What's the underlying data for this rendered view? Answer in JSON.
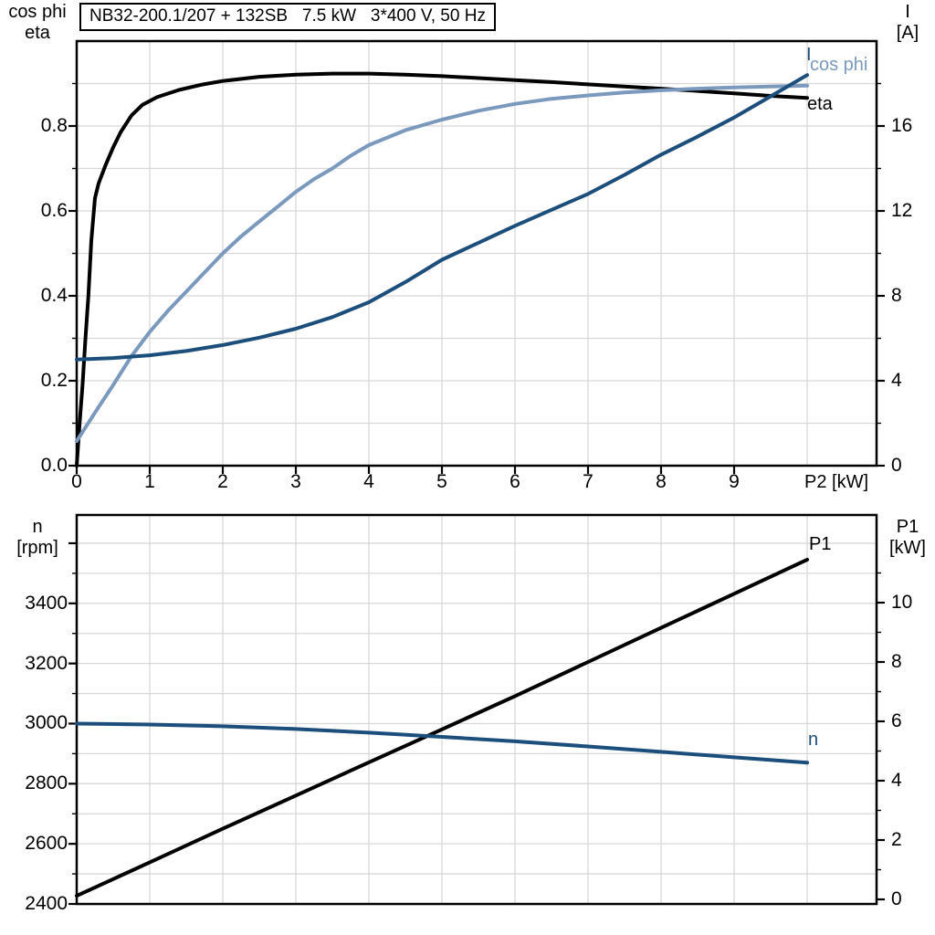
{
  "title": "NB32-200.1/207 + 132SB   7.5 kW   3*400 V, 50 Hz",
  "colors": {
    "black": "#000000",
    "light_blue": "#7a99bd",
    "dark_blue": "#1c4e7c",
    "grid": "#d8d8d8",
    "background": "#ffffff"
  },
  "chart_data": [
    {
      "type": "line",
      "title": "NB32-200.1/207 + 132SB   7.5 kW   3*400 V, 50 Hz",
      "grid": true,
      "legend_position": "right-inline",
      "x_axis": {
        "label": "P2 [kW]",
        "range": [
          0,
          10.95
        ],
        "tick_values": [
          0,
          1,
          2,
          3,
          4,
          5,
          6,
          7,
          8,
          9
        ],
        "tick_labels": [
          "0",
          "1",
          "2",
          "3",
          "4",
          "5",
          "6",
          "7",
          "8",
          "9"
        ]
      },
      "axes": {
        "left": {
          "title_lines": [
            "cos phi",
            "eta"
          ],
          "range": [
            0,
            1.0
          ],
          "major_ticks": [
            0,
            0.2,
            0.4,
            0.6,
            0.8
          ],
          "tick_labels": [
            "0.0",
            "0.2",
            "0.4",
            "0.6",
            "0.8"
          ],
          "minor_ticks": [
            0.1,
            0.3,
            0.5,
            0.7,
            0.9
          ]
        },
        "right": {
          "title_lines": [
            "I",
            "[A]"
          ],
          "range": [
            0,
            20
          ],
          "major_ticks": [
            0,
            4,
            8,
            12,
            16
          ],
          "tick_labels": [
            "0",
            "4",
            "8",
            "12",
            "16"
          ],
          "minor_ticks": [
            2,
            6,
            10,
            14,
            18
          ]
        }
      },
      "series": [
        {
          "name": "eta",
          "label": "eta",
          "axis": "left",
          "color": "#000000",
          "x": [
            0,
            0.04,
            0.08,
            0.12,
            0.16,
            0.2,
            0.25,
            0.3,
            0.4,
            0.5,
            0.6,
            0.75,
            0.9,
            1.1,
            1.4,
            1.7,
            2.0,
            2.5,
            3.0,
            3.5,
            4.0,
            4.5,
            5.0,
            5.5,
            6.0,
            6.5,
            7.0,
            7.5,
            8.0,
            8.5,
            9.0,
            9.5,
            10.0
          ],
          "y": [
            0,
            0.1,
            0.19,
            0.3,
            0.4,
            0.53,
            0.63,
            0.665,
            0.71,
            0.75,
            0.785,
            0.825,
            0.85,
            0.868,
            0.885,
            0.897,
            0.906,
            0.916,
            0.921,
            0.9235,
            0.9235,
            0.921,
            0.9175,
            0.913,
            0.908,
            0.9035,
            0.898,
            0.893,
            0.888,
            0.8825,
            0.877,
            0.871,
            0.866
          ]
        },
        {
          "name": "cos phi",
          "label": "cos phi",
          "axis": "left",
          "color": "#7a99bd",
          "x": [
            0,
            0.25,
            0.5,
            0.75,
            1.0,
            1.25,
            1.5,
            1.75,
            2.0,
            2.25,
            2.5,
            2.75,
            3.0,
            3.25,
            3.5,
            3.75,
            4.0,
            4.5,
            5.0,
            5.5,
            6.0,
            6.5,
            7.0,
            7.5,
            8.0,
            8.5,
            9.0,
            9.5,
            10.0
          ],
          "y": [
            0.058,
            0.125,
            0.19,
            0.258,
            0.315,
            0.365,
            0.41,
            0.455,
            0.5,
            0.54,
            0.575,
            0.61,
            0.645,
            0.675,
            0.7,
            0.73,
            0.755,
            0.79,
            0.815,
            0.836,
            0.852,
            0.864,
            0.872,
            0.879,
            0.884,
            0.888,
            0.891,
            0.893,
            0.895
          ]
        },
        {
          "name": "I",
          "label": "I",
          "axis": "right",
          "color": "#1c4e7c",
          "x": [
            0,
            0.5,
            1.0,
            1.5,
            2.0,
            2.5,
            3.0,
            3.5,
            4.0,
            4.5,
            5.0,
            5.5,
            6.0,
            6.5,
            7.0,
            7.5,
            8.0,
            8.5,
            9.0,
            9.5,
            10.0
          ],
          "y": [
            5.0,
            5.07,
            5.2,
            5.4,
            5.68,
            6.03,
            6.45,
            7.0,
            7.7,
            8.65,
            9.7,
            10.5,
            11.3,
            12.05,
            12.8,
            13.7,
            14.65,
            15.5,
            16.4,
            17.4,
            18.4
          ]
        }
      ]
    },
    {
      "type": "line",
      "title": "",
      "grid": true,
      "x_axis": {
        "label": "",
        "range": [
          0,
          10.95
        ],
        "tick_values": [],
        "tick_labels": []
      },
      "axes": {
        "left": {
          "title_lines": [
            "n",
            "[rpm]"
          ],
          "range": [
            2400,
            3690
          ],
          "major_ticks": [
            2400,
            2600,
            2800,
            3000,
            3200,
            3400,
            3600
          ],
          "tick_labels": [
            "2400",
            "2600",
            "2800",
            "3000",
            "3200",
            "3400",
            ""
          ],
          "minor_ticks": [
            2500,
            2700,
            2900,
            3100,
            3300,
            3500
          ]
        },
        "right": {
          "title_lines": [
            "P1",
            "[kW]"
          ],
          "range": [
            0,
            12.9
          ],
          "major_ticks": [
            0,
            2,
            4,
            6,
            8,
            10
          ],
          "tick_labels": [
            "0",
            "2",
            "4",
            "6",
            "8",
            "10"
          ],
          "minor_ticks": [
            1,
            3,
            5,
            7,
            9,
            11
          ]
        }
      },
      "series": [
        {
          "name": "P1",
          "label": "P1",
          "axis": "right",
          "color": "#000000",
          "x": [
            0,
            1,
            2,
            3,
            4,
            5,
            6,
            7,
            8,
            9,
            10
          ],
          "y": [
            0.12,
            1.25,
            2.38,
            3.5,
            4.62,
            5.73,
            6.85,
            8.0,
            9.15,
            10.3,
            11.45
          ]
        },
        {
          "name": "n",
          "label": "n",
          "axis": "left",
          "color": "#1c4e7c",
          "x": [
            0,
            1,
            2,
            3,
            4,
            5,
            6,
            7,
            8,
            9,
            10
          ],
          "y": [
            3000,
            2997,
            2991,
            2982,
            2970,
            2956,
            2941,
            2924,
            2906,
            2888,
            2870
          ]
        }
      ]
    }
  ]
}
